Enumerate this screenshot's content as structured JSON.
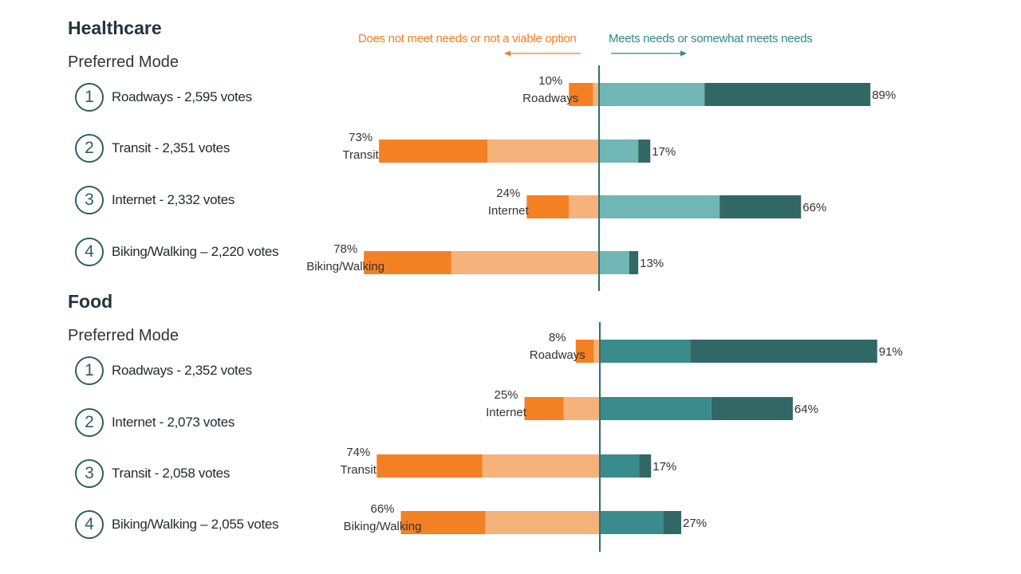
{
  "legend": {
    "left": "Does not meet needs or not a viable option",
    "right": "Meets needs or somewhat meets needs"
  },
  "colors": {
    "orange_dark": "#f48024",
    "orange_light": "#f6b27b",
    "teal_light_hc": "#6fb6b5",
    "teal_mid_food": "#3a8b8b",
    "teal_dark": "#316866",
    "axis": "#2f6e70",
    "legend_left": "#f27f22",
    "legend_right": "#2f8a8a"
  },
  "sections": [
    {
      "title": "Healthcare",
      "mode_title": "Preferred Mode",
      "ranks": [
        {
          "num": "1",
          "label": "Roadways - 2,595 votes"
        },
        {
          "num": "2",
          "label": "Transit - 2,351 votes"
        },
        {
          "num": "3",
          "label": "Internet - 2,332 votes"
        },
        {
          "num": "4",
          "label": "Biking/Walking – 2,220 votes"
        }
      ]
    },
    {
      "title": "Food",
      "mode_title": "Preferred Mode",
      "ranks": [
        {
          "num": "1",
          "label": "Roadways - 2,352 votes"
        },
        {
          "num": "2",
          "label": "Internet - 2,073 votes"
        },
        {
          "num": "3",
          "label": "Transit - 2,058 votes"
        },
        {
          "num": "4",
          "label": "Biking/Walking – 2,055 votes"
        }
      ]
    }
  ],
  "chart_data": [
    {
      "type": "bar",
      "title": "Healthcare",
      "orientation": "diverging-horizontal",
      "categories": [
        "Roadways",
        "Transit",
        "Internet",
        "Biking/Walking"
      ],
      "series": [
        {
          "name": "Does not meet needs or not a viable option",
          "values": [
            10,
            73,
            24,
            78
          ],
          "labels": [
            "10%",
            "73%",
            "24%",
            "78%"
          ]
        },
        {
          "name": "Meets needs or somewhat meets needs",
          "values": [
            89,
            17,
            66,
            13
          ],
          "labels": [
            "89%",
            "17%",
            "66%",
            "13%"
          ]
        }
      ],
      "negative_split": [
        [
          8,
          2
        ],
        [
          36,
          37
        ],
        [
          14,
          10
        ],
        [
          29,
          49
        ]
      ],
      "positive_split": [
        [
          35,
          55
        ],
        [
          13,
          4
        ],
        [
          40,
          27
        ],
        [
          10,
          3
        ]
      ]
    },
    {
      "type": "bar",
      "title": "Food",
      "orientation": "diverging-horizontal",
      "categories": [
        "Roadways",
        "Internet",
        "Transit",
        "Biking/Walking"
      ],
      "series": [
        {
          "name": "Does not meet needs or not a viable option",
          "values": [
            8,
            25,
            74,
            66
          ],
          "labels": [
            "8%",
            "25%",
            "74%",
            "66%"
          ]
        },
        {
          "name": "Meets needs or somewhat meets needs",
          "values": [
            91,
            64,
            17,
            27
          ],
          "labels": [
            "91%",
            "64%",
            "17%",
            "27%"
          ]
        }
      ],
      "negative_split": [
        [
          6,
          2
        ],
        [
          13,
          12
        ],
        [
          35,
          39
        ],
        [
          28,
          38
        ]
      ],
      "positive_split": [
        [
          30,
          62
        ],
        [
          37,
          27
        ],
        [
          13,
          4
        ],
        [
          21,
          6
        ]
      ]
    }
  ]
}
